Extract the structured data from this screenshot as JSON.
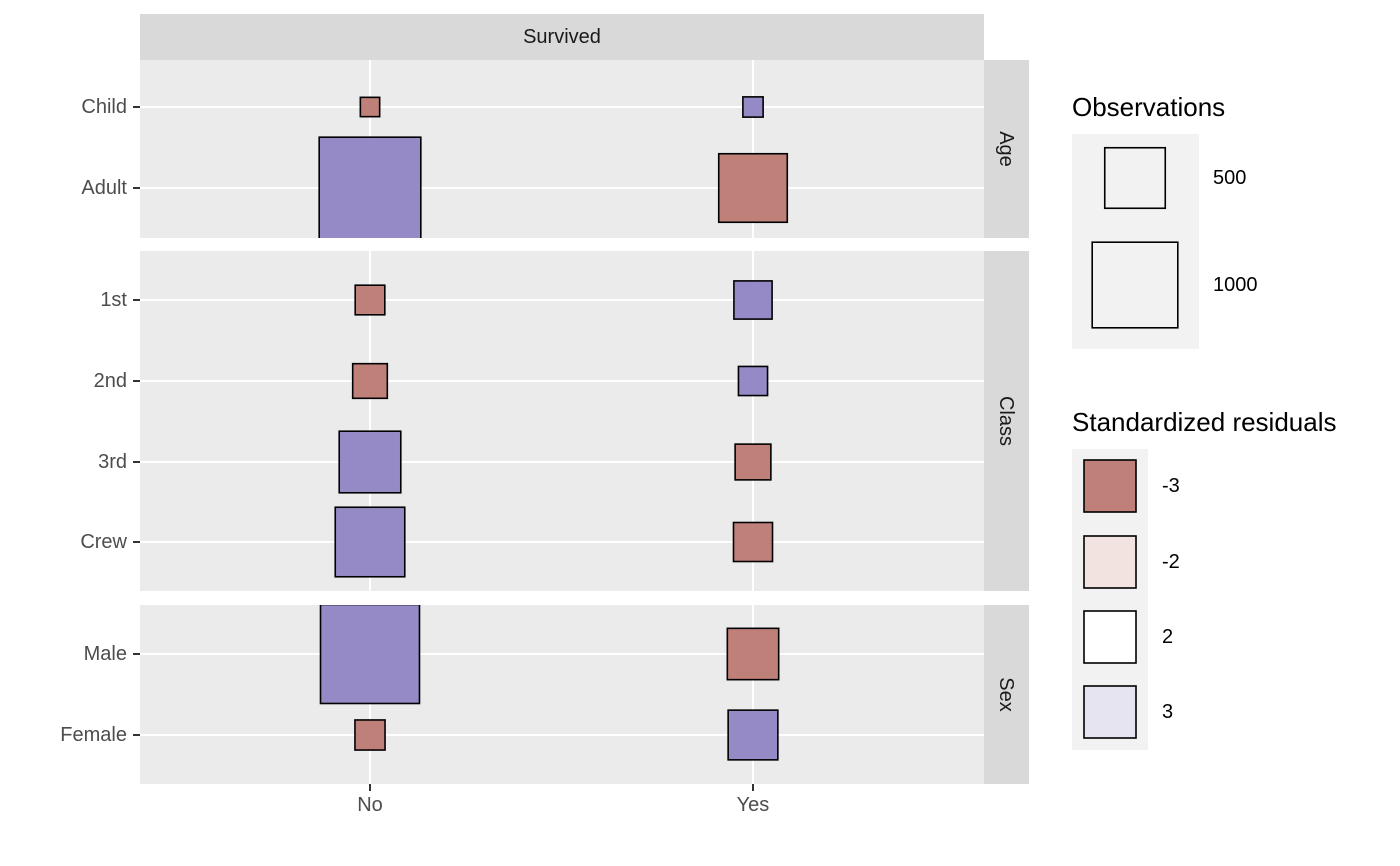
{
  "chart_data": {
    "type": "tile",
    "column_facet": "Survived",
    "x_categories": [
      "No",
      "Yes"
    ],
    "colors": {
      "negative_residual": "#c0807a",
      "positive_residual": "#9589c6",
      "panel_background": "#ebebeb",
      "strip_background": "#d9d9d9",
      "legend_key_background": "#f2f2f2"
    },
    "facets": [
      {
        "label": "Age",
        "categories": [
          "Child",
          "Adult"
        ],
        "cells": [
          {
            "x": "No",
            "y": "Child",
            "observations": 52,
            "residual": -3
          },
          {
            "x": "No",
            "y": "Adult",
            "observations": 1438,
            "residual": 3
          },
          {
            "x": "Yes",
            "y": "Child",
            "observations": 57,
            "residual": 3
          },
          {
            "x": "Yes",
            "y": "Adult",
            "observations": 654,
            "residual": -3
          }
        ]
      },
      {
        "label": "Class",
        "categories": [
          "1st",
          "2nd",
          "3rd",
          "Crew"
        ],
        "cells": [
          {
            "x": "No",
            "y": "1st",
            "observations": 122,
            "residual": -3
          },
          {
            "x": "No",
            "y": "2nd",
            "observations": 167,
            "residual": -3
          },
          {
            "x": "No",
            "y": "3rd",
            "observations": 528,
            "residual": 3
          },
          {
            "x": "No",
            "y": "Crew",
            "observations": 673,
            "residual": 3
          },
          {
            "x": "Yes",
            "y": "1st",
            "observations": 203,
            "residual": 3
          },
          {
            "x": "Yes",
            "y": "2nd",
            "observations": 118,
            "residual": 3
          },
          {
            "x": "Yes",
            "y": "3rd",
            "observations": 178,
            "residual": -3
          },
          {
            "x": "Yes",
            "y": "Crew",
            "observations": 212,
            "residual": -3
          }
        ]
      },
      {
        "label": "Sex",
        "categories": [
          "Male",
          "Female"
        ],
        "cells": [
          {
            "x": "No",
            "y": "Male",
            "observations": 1364,
            "residual": 3
          },
          {
            "x": "No",
            "y": "Female",
            "observations": 126,
            "residual": -3
          },
          {
            "x": "Yes",
            "y": "Male",
            "observations": 367,
            "residual": -3
          },
          {
            "x": "Yes",
            "y": "Female",
            "observations": 344,
            "residual": 3
          }
        ]
      }
    ],
    "legend_size": {
      "title": "Observations",
      "entries": [
        {
          "label": "500",
          "value": 500
        },
        {
          "label": "1000",
          "value": 1000
        }
      ]
    },
    "legend_fill": {
      "title": "Standardized residuals",
      "entries": [
        {
          "label": "-3",
          "color": "#c0807a"
        },
        {
          "label": "-2",
          "color": "#f2e3e1"
        },
        {
          "label": "2",
          "color": "#ffffff"
        },
        {
          "label": "3",
          "color": "#e7e4f2"
        }
      ]
    }
  }
}
